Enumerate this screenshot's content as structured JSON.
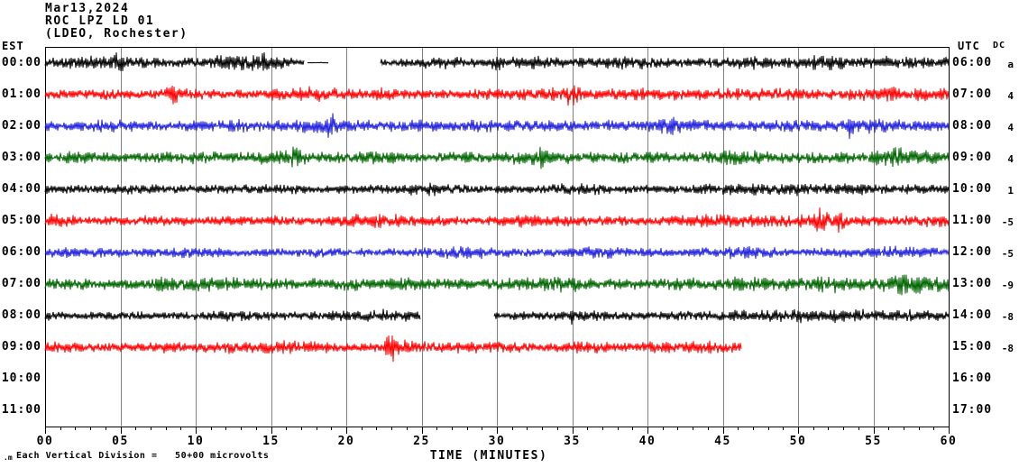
{
  "header": {
    "date_line": "Mar13,2024",
    "station_line": "ROC LPZ LD 01",
    "network_line": "(LDEO, Rochester)",
    "left_tz_label": "EST",
    "right_tz_label": "UTC",
    "dc_column_label": "DC"
  },
  "footer": {
    "scale_marker": ".m",
    "scale_text": "Each Vertical Division =   50+00 microvolts",
    "xaxis_title": "TIME (MINUTES)"
  },
  "chart_data": {
    "type": "line",
    "subtype": "helicorder-seismogram",
    "title": "ROC LPZ LD 01 (LDEO, Rochester) Mar13,2024",
    "xlabel": "TIME (MINUTES)",
    "x_range_minutes": [
      0,
      60
    ],
    "major_tick_minutes": [
      0,
      5,
      10,
      15,
      20,
      25,
      30,
      35,
      40,
      45,
      50,
      55,
      60
    ],
    "major_tick_labels": [
      "00",
      "05",
      "10",
      "15",
      "20",
      "25",
      "30",
      "35",
      "40",
      "45",
      "50",
      "55",
      "60"
    ],
    "minor_tick_every_minutes": 1,
    "grid": "vertical gray lines at each 5-minute division",
    "legend_position": "none",
    "vertical_division_microvolts": 50.0,
    "colors": {
      "black": "#000000",
      "red": "#FF0000",
      "blue": "#2222DD",
      "green": "#006600",
      "grid": "#808080",
      "axis": "#000000",
      "background": "#FFFFFF"
    },
    "rows": [
      {
        "est": "00:00",
        "utc": "06:00",
        "dc": "a",
        "color": "black",
        "segments": [
          {
            "start": 0,
            "end": 17.2,
            "amp": [
              4,
              6,
              7,
              5,
              4,
              6,
              8,
              6,
              3
            ],
            "spikes": [
              {
                "m": 5,
                "a": 3
              },
              {
                "m": 14.5,
                "a": 4
              }
            ]
          },
          {
            "start": 17.4,
            "end": 18.8,
            "amp": [
              0.4
            ],
            "spikes": []
          },
          {
            "start": 22.3,
            "end": 60,
            "amp": [
              3,
              4,
              6,
              4,
              5,
              6,
              4,
              5,
              6,
              5,
              4,
              5,
              6,
              5,
              7,
              6,
              4,
              6,
              5
            ],
            "spikes": [
              {
                "m": 30,
                "a": 3
              },
              {
                "m": 56,
                "a": 3
              }
            ]
          }
        ]
      },
      {
        "est": "01:00",
        "utc": "07:00",
        "dc": "4",
        "color": "red",
        "segments": [
          {
            "start": 0,
            "end": 60,
            "amp": [
              4,
              4,
              5,
              4,
              6,
              5,
              4,
              5,
              6,
              7,
              5,
              6,
              5,
              4,
              5,
              5,
              6,
              7,
              5,
              5,
              6,
              5,
              5,
              6,
              5,
              6,
              5,
              6,
              7,
              6,
              7
            ],
            "spikes": [
              {
                "m": 35,
                "a": 7
              },
              {
                "m": 8.5,
                "a": 4
              }
            ]
          }
        ]
      },
      {
        "est": "02:00",
        "utc": "08:00",
        "dc": "4",
        "color": "blue",
        "segments": [
          {
            "start": 0,
            "end": 60,
            "amp": [
              5,
              4,
              6,
              5,
              4,
              5,
              6,
              5,
              5,
              7,
              6,
              5,
              6,
              5,
              5,
              6,
              5,
              6,
              5,
              5,
              6,
              7,
              6,
              5,
              5,
              6,
              5,
              7,
              6,
              5,
              4
            ],
            "spikes": [
              {
                "m": 19,
                "a": 5
              },
              {
                "m": 41.5,
                "a": 4
              },
              {
                "m": 53.5,
                "a": 5
              }
            ]
          }
        ]
      },
      {
        "est": "03:00",
        "utc": "09:00",
        "dc": "4",
        "color": "green",
        "segments": [
          {
            "start": 0,
            "end": 60,
            "amp": [
              5,
              6,
              5,
              4,
              5,
              6,
              5,
              6,
              7,
              6,
              5,
              6,
              5,
              4,
              6,
              5,
              7,
              6,
              5,
              5,
              6,
              5,
              6,
              7,
              6,
              5,
              6,
              5,
              8,
              7,
              5
            ],
            "spikes": [
              {
                "m": 16.5,
                "a": 5
              },
              {
                "m": 33,
                "a": 5
              },
              {
                "m": 56.5,
                "a": 5
              }
            ]
          }
        ]
      },
      {
        "est": "04:00",
        "utc": "10:00",
        "dc": "1",
        "color": "black",
        "segments": [
          {
            "start": 0,
            "end": 60,
            "amp": [
              4,
              4,
              4,
              5,
              4,
              4,
              5,
              4,
              5,
              4,
              4,
              4,
              5,
              6,
              4,
              4,
              4,
              5,
              6,
              4,
              4,
              4,
              5,
              6,
              5,
              6,
              5,
              5,
              4,
              5,
              4
            ],
            "spikes": []
          }
        ]
      },
      {
        "est": "05:00",
        "utc": "11:00",
        "dc": "-5",
        "color": "red",
        "segments": [
          {
            "start": 0,
            "end": 60,
            "amp": [
              6,
              5,
              4,
              5,
              5,
              4,
              5,
              4,
              5,
              4,
              6,
              7,
              6,
              5,
              4,
              5,
              6,
              5,
              4,
              5,
              4,
              5,
              6,
              6,
              5,
              6,
              7,
              5,
              4,
              5,
              6
            ],
            "spikes": [
              {
                "m": 51.5,
                "a": 7
              },
              {
                "m": 52.8,
                "a": 5
              }
            ]
          }
        ]
      },
      {
        "est": "06:00",
        "utc": "12:00",
        "dc": "-5",
        "color": "blue",
        "segments": [
          {
            "start": 0,
            "end": 60,
            "amp": [
              4,
              5,
              5,
              4,
              5,
              5,
              4,
              4,
              4,
              5,
              4,
              4,
              4,
              5,
              6,
              5,
              4,
              4,
              6,
              5,
              4,
              4,
              4,
              6,
              5,
              4,
              4,
              5,
              6,
              5,
              4
            ],
            "spikes": []
          }
        ]
      },
      {
        "est": "07:00",
        "utc": "13:00",
        "dc": "-9",
        "color": "green",
        "segments": [
          {
            "start": 0,
            "end": 60,
            "amp": [
              5,
              5,
              5,
              5,
              7,
              6,
              7,
              6,
              5,
              5,
              6,
              5,
              7,
              5,
              5,
              5,
              6,
              8,
              6,
              5,
              5,
              6,
              5,
              7,
              6,
              6,
              8,
              6,
              7,
              9,
              7
            ],
            "spikes": [
              {
                "m": 34,
                "a": 4
              },
              {
                "m": 57,
                "a": 4
              }
            ]
          }
        ]
      },
      {
        "est": "08:00",
        "utc": "14:00",
        "dc": "-8",
        "color": "black",
        "segments": [
          {
            "start": 0,
            "end": 24.9,
            "amp": [
              4,
              3,
              4,
              4,
              3,
              4,
              5,
              4,
              4,
              4,
              5,
              6,
              5
            ],
            "spikes": []
          },
          {
            "start": 29.8,
            "end": 60,
            "amp": [
              3,
              4,
              5,
              6,
              4,
              4,
              5,
              4,
              6,
              5,
              7,
              6,
              6,
              5,
              6,
              4
            ],
            "spikes": [
              {
                "m": 35,
                "a": 3
              },
              {
                "m": 51,
                "a": 3
              }
            ]
          }
        ]
      },
      {
        "est": "09:00",
        "utc": "15:00",
        "dc": "-8",
        "color": "red",
        "segments": [
          {
            "start": 0,
            "end": 46.2,
            "amp": [
              6,
              5,
              4,
              4,
              5,
              5,
              6,
              5,
              6,
              6,
              4,
              5,
              8,
              5,
              6,
              6,
              4,
              5,
              6,
              4,
              6,
              5,
              6,
              5
            ],
            "spikes": [
              {
                "m": 23,
                "a": 8
              }
            ]
          }
        ]
      },
      {
        "est": "10:00",
        "utc": "16:00",
        "dc": "",
        "color": "black",
        "segments": []
      },
      {
        "est": "11:00",
        "utc": "17:00",
        "dc": "",
        "color": "black",
        "segments": []
      }
    ]
  }
}
